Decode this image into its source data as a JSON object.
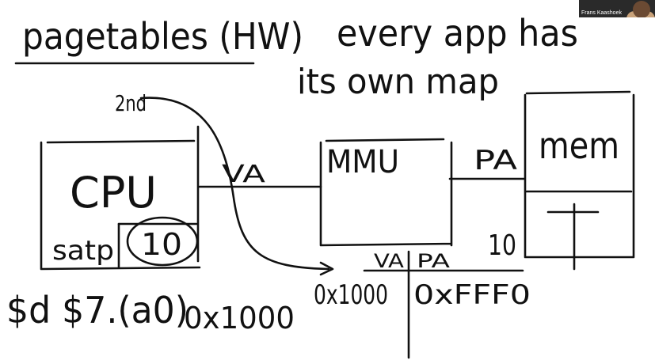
{
  "whiteboard": {
    "title": "pagetables (HW)",
    "note_line1": "every app has",
    "note_line2": "its own map",
    "cpu": {
      "label": "CPU",
      "satp_label": "satp",
      "satp_value": "10"
    },
    "mmu": {
      "label": "MMU"
    },
    "mem": {
      "label": "mem"
    },
    "arrow_va": "VA",
    "arrow_pa": "PA",
    "annotation_2nd": "2nd",
    "mem_address": "10",
    "table": {
      "header_va": "VA",
      "header_pa": "PA",
      "row_va": "0x1000",
      "row_pa": "0xFFF0"
    },
    "instruction": "$d $7.(a0)",
    "instruction_offset": "0x1000"
  },
  "video": {
    "participant_name": "Frans Kaashoek"
  }
}
